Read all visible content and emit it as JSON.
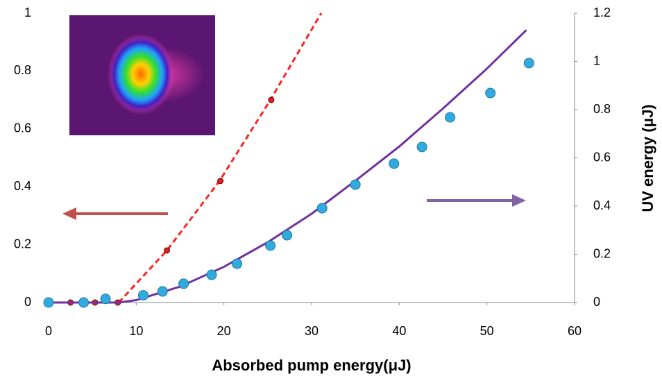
{
  "chart_data": {
    "type": "line",
    "xlabel": "Absorbed pump energy(μJ)",
    "y2label": "UV energy (μJ)",
    "xlim": [
      0,
      60
    ],
    "xticks": [
      0,
      10,
      20,
      30,
      40,
      50,
      60
    ],
    "ylim": [
      0,
      1
    ],
    "yticks": [
      0,
      0.2,
      0.4,
      0.6,
      0.8,
      1
    ],
    "y2lim": [
      0,
      1.2
    ],
    "y2ticks": [
      0,
      0.2,
      0.4,
      0.6,
      0.8,
      1,
      1.2
    ],
    "series": [
      {
        "mode": "line",
        "dash": true,
        "color": "#ff2222",
        "x": [
          8,
          13.5,
          19.5,
          25.3,
          31.1
        ],
        "values": [
          0,
          0.18,
          0.42,
          0.7,
          1.0
        ]
      },
      {
        "mode": "markers",
        "color": "#e02020",
        "x": [
          2.5,
          5.3,
          7.9,
          13.5,
          19.6,
          25.4
        ],
        "values": [
          0,
          0,
          0,
          0.18,
          0.42,
          0.7
        ]
      },
      {
        "mode": "line",
        "axis": "y2",
        "color": "#7030a0",
        "x": [
          0,
          8,
          10,
          15,
          20,
          25,
          30,
          35,
          40,
          45,
          50,
          54.5
        ],
        "values": [
          0,
          0,
          0.01,
          0.066,
          0.148,
          0.25,
          0.368,
          0.505,
          0.647,
          0.805,
          0.97,
          1.13
        ]
      },
      {
        "mode": "markers",
        "axis": "y2",
        "color": "#33aadd",
        "x": [
          0,
          4.0,
          6.5,
          10.8,
          13.0,
          15.4,
          18.6,
          21.5,
          25.3,
          27.2,
          31.2,
          35.0,
          39.4,
          42.6,
          45.8,
          50.4,
          54.8
        ],
        "values": [
          0,
          0,
          0.015,
          0.03,
          0.046,
          0.078,
          0.115,
          0.161,
          0.236,
          0.279,
          0.391,
          0.489,
          0.576,
          0.645,
          0.768,
          0.869,
          0.993
        ]
      }
    ]
  }
}
